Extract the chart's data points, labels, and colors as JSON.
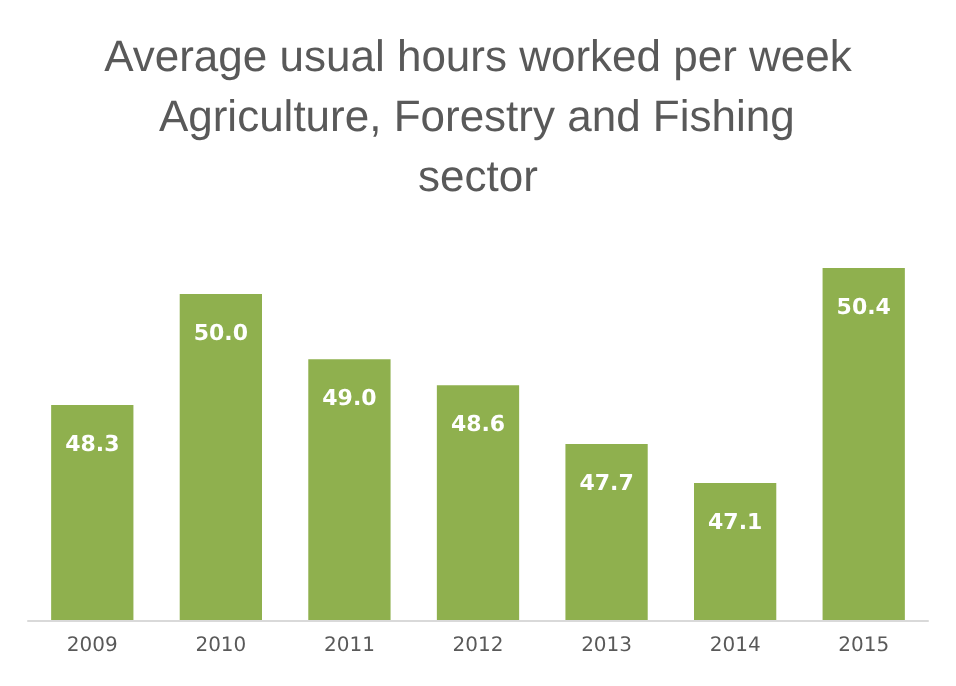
{
  "chart_data": {
    "type": "bar",
    "title": "Average usual hours worked per week Agriculture, Forestry and Fishing sector",
    "categories": [
      "2009",
      "2010",
      "2011",
      "2012",
      "2013",
      "2014",
      "2015"
    ],
    "values": [
      48.3,
      50.0,
      49.0,
      48.6,
      47.7,
      47.1,
      50.4
    ],
    "value_labels": [
      "48.3",
      "50.0",
      "49.0",
      "48.6",
      "47.7",
      "47.1",
      "50.4"
    ],
    "color": "#8fb04e",
    "ylim": [
      45,
      50.4
    ],
    "tick_labels": "x"
  }
}
